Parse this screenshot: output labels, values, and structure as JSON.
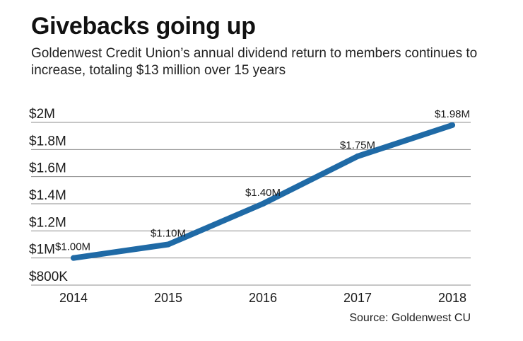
{
  "header": {
    "title": "Givebacks going up",
    "subtitle": "Goldenwest Credit Union’s annual dividend return to members continues to increase, totaling $13 million over 15 years"
  },
  "source": "Source: Goldenwest CU",
  "colors": {
    "line": "#1f6aa6",
    "grid": "#8c8c8c",
    "text": "#1a1a1a"
  },
  "chart_data": {
    "type": "line",
    "title": "Givebacks going up",
    "subtitle": "Goldenwest Credit Union’s annual dividend return to members continues to increase, totaling $13 million over 15 years",
    "xlabel": "",
    "ylabel": "",
    "categories": [
      "2014",
      "2015",
      "2016",
      "2017",
      "2018"
    ],
    "series": [
      {
        "values": [
          1.0,
          1.1,
          1.4,
          1.75,
          1.98
        ]
      }
    ],
    "data_labels": [
      "$1.00M",
      "$1.10M",
      "$1.40M",
      "$1.75M",
      "$1.98M"
    ],
    "ylim": [
      0.8,
      2.0
    ],
    "yticks": [
      0.8,
      1.0,
      1.2,
      1.4,
      1.6,
      1.8,
      2.0
    ],
    "ytick_labels": [
      "$800K",
      "$1M",
      "$1.2M",
      "$1.4M",
      "$1.6M",
      "$1.8M",
      "$2M"
    ],
    "grid": true
  }
}
